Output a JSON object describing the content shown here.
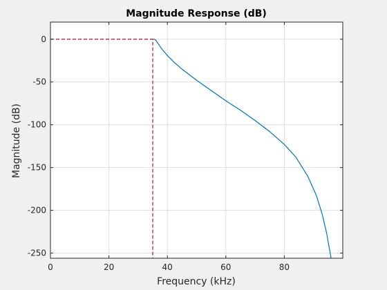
{
  "chart_data": {
    "type": "line",
    "title": "Magnitude Response (dB)",
    "xlabel": "Frequency (kHz)",
    "ylabel": "Magnitude (dB)",
    "xlim": [
      0,
      100
    ],
    "ylim": [
      -256,
      20
    ],
    "grid": true,
    "x_ticks": [
      0,
      20,
      40,
      60,
      80
    ],
    "y_ticks": [
      0,
      -50,
      -100,
      -150,
      -200,
      -250
    ],
    "x_tick_labels": [
      "0",
      "20",
      "40",
      "60",
      "80"
    ],
    "y_tick_labels": [
      "0",
      "-50",
      "-100",
      "-150",
      "-200",
      "-250"
    ],
    "colors": {
      "response": "#0072bd",
      "mask": "#a2142f",
      "grid": "#dfdfdf",
      "axes_bg": "#ffffff",
      "figure_bg": "#f0f0f0"
    },
    "series": [
      {
        "style": "solid",
        "x": [
          35,
          35.5,
          36,
          37,
          38,
          40,
          42,
          45,
          50,
          55,
          60,
          65,
          70,
          75,
          80,
          84,
          88,
          91,
          93,
          94.5,
          96
        ],
        "y": [
          0,
          0,
          -1,
          -6,
          -11,
          -19,
          -26,
          -35,
          -48,
          -60,
          -72,
          -83,
          -95,
          -108,
          -123,
          -138,
          -160,
          -183,
          -205,
          -227,
          -256
        ]
      },
      {
        "style": "dashed",
        "x": [
          0,
          35,
          35
        ],
        "y": [
          0,
          0,
          -256
        ]
      }
    ]
  }
}
